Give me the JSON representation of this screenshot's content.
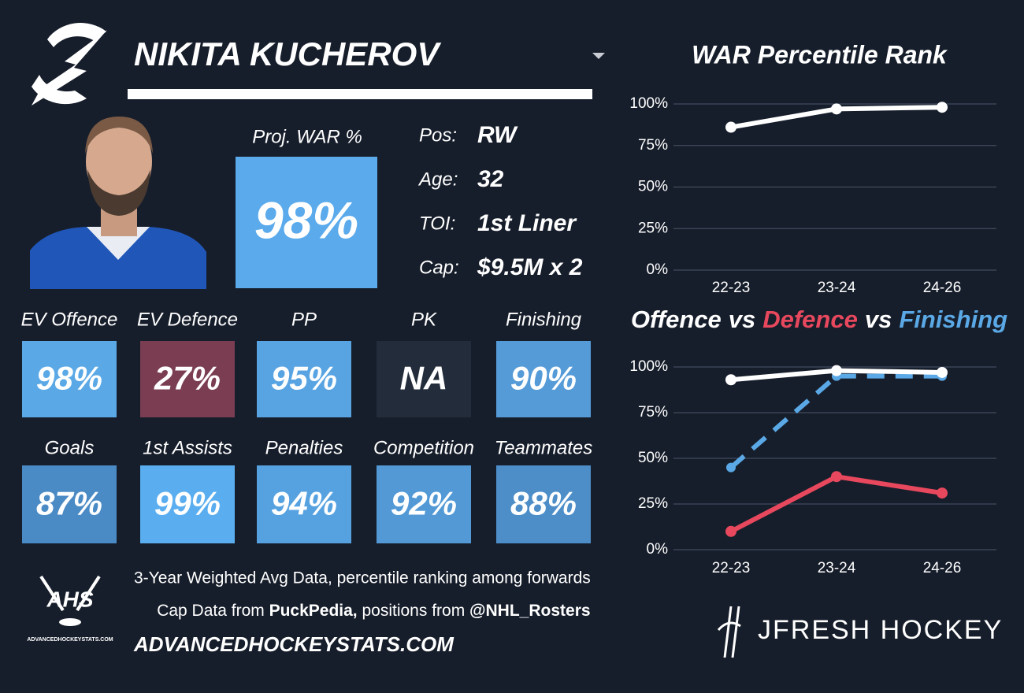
{
  "player": {
    "name": "NIKITA KUCHEROV"
  },
  "proj_war": {
    "label": "Proj. WAR %",
    "value": "98%",
    "color": "#5aaaec"
  },
  "info": [
    {
      "label": "Pos:",
      "value": "RW"
    },
    {
      "label": "Age:",
      "value": "32"
    },
    {
      "label": "TOI:",
      "value": "1st Liner"
    },
    {
      "label": "Cap:",
      "value": "$9.5M x 2"
    }
  ],
  "tiles": [
    {
      "label": "EV Offence",
      "value": "98%",
      "color": "#5aa9e6"
    },
    {
      "label": "EV Defence",
      "value": "27%",
      "color": "#7a3d52"
    },
    {
      "label": "PP",
      "value": "95%",
      "color": "#58a4e2"
    },
    {
      "label": "PK",
      "value": "NA",
      "color": "#222c3a"
    },
    {
      "label": "Finishing",
      "value": "90%",
      "color": "#559bd8"
    },
    {
      "label": "Goals",
      "value": "87%",
      "color": "#4a8ac5"
    },
    {
      "label": "1st Assists",
      "value": "99%",
      "color": "#5aaef0"
    },
    {
      "label": "Penalties",
      "value": "94%",
      "color": "#56a2e0"
    },
    {
      "label": "Competition",
      "value": "92%",
      "color": "#5299d6"
    },
    {
      "label": "Teammates",
      "value": "88%",
      "color": "#4d8ec9"
    }
  ],
  "footer": {
    "logo": "AHS",
    "logo_caption": "ADVANCEDHOCKEYSTATS.COM",
    "line1": "3-Year Weighted Avg Data, percentile ranking among forwards",
    "line2": [
      "Cap Data from ",
      "PuckPedia,",
      " positions from ",
      "@NHL_Rosters"
    ],
    "url": "ADVANCEDHOCKEYSTATS.COM",
    "brand": "JFRESH HOCKEY"
  },
  "chart_data": [
    {
      "type": "line",
      "title": "WAR Percentile Rank",
      "categories": [
        "22-23",
        "23-24",
        "24-26"
      ],
      "series": [
        {
          "color": "#ffffff",
          "values": [
            86,
            97,
            98
          ]
        }
      ],
      "ylim": [
        0,
        100
      ],
      "yticks": [
        {
          "value": 0,
          "label": "0%"
        },
        {
          "value": 25,
          "label": "25%"
        },
        {
          "value": 50,
          "label": "50%"
        },
        {
          "value": 75,
          "label": "75%"
        },
        {
          "value": 100,
          "label": "100%"
        }
      ],
      "grid": true
    },
    {
      "type": "line",
      "title_parts": [
        {
          "text": "Offence",
          "color": "#ffffff"
        },
        {
          "text": "vs",
          "color": "#ffffff"
        },
        {
          "text": "Defence",
          "color": "#e8485d"
        },
        {
          "text": "vs",
          "color": "#ffffff"
        },
        {
          "text": "Finishing",
          "color": "#5aa9e6"
        }
      ],
      "categories": [
        "22-23",
        "23-24",
        "24-26"
      ],
      "series": [
        {
          "color": "#5aa9e6",
          "dashed": true,
          "values": [
            45,
            95,
            95
          ]
        },
        {
          "color": "#ffffff",
          "values": [
            93,
            98,
            97
          ]
        },
        {
          "color": "#e8485d",
          "values": [
            10,
            40,
            31
          ]
        }
      ],
      "ylim": [
        0,
        100
      ],
      "yticks": [
        {
          "value": 0,
          "label": "0%"
        },
        {
          "value": 25,
          "label": "25%"
        },
        {
          "value": 50,
          "label": "50%"
        },
        {
          "value": 75,
          "label": "75%"
        },
        {
          "value": 100,
          "label": "100%"
        }
      ],
      "grid": true
    }
  ]
}
